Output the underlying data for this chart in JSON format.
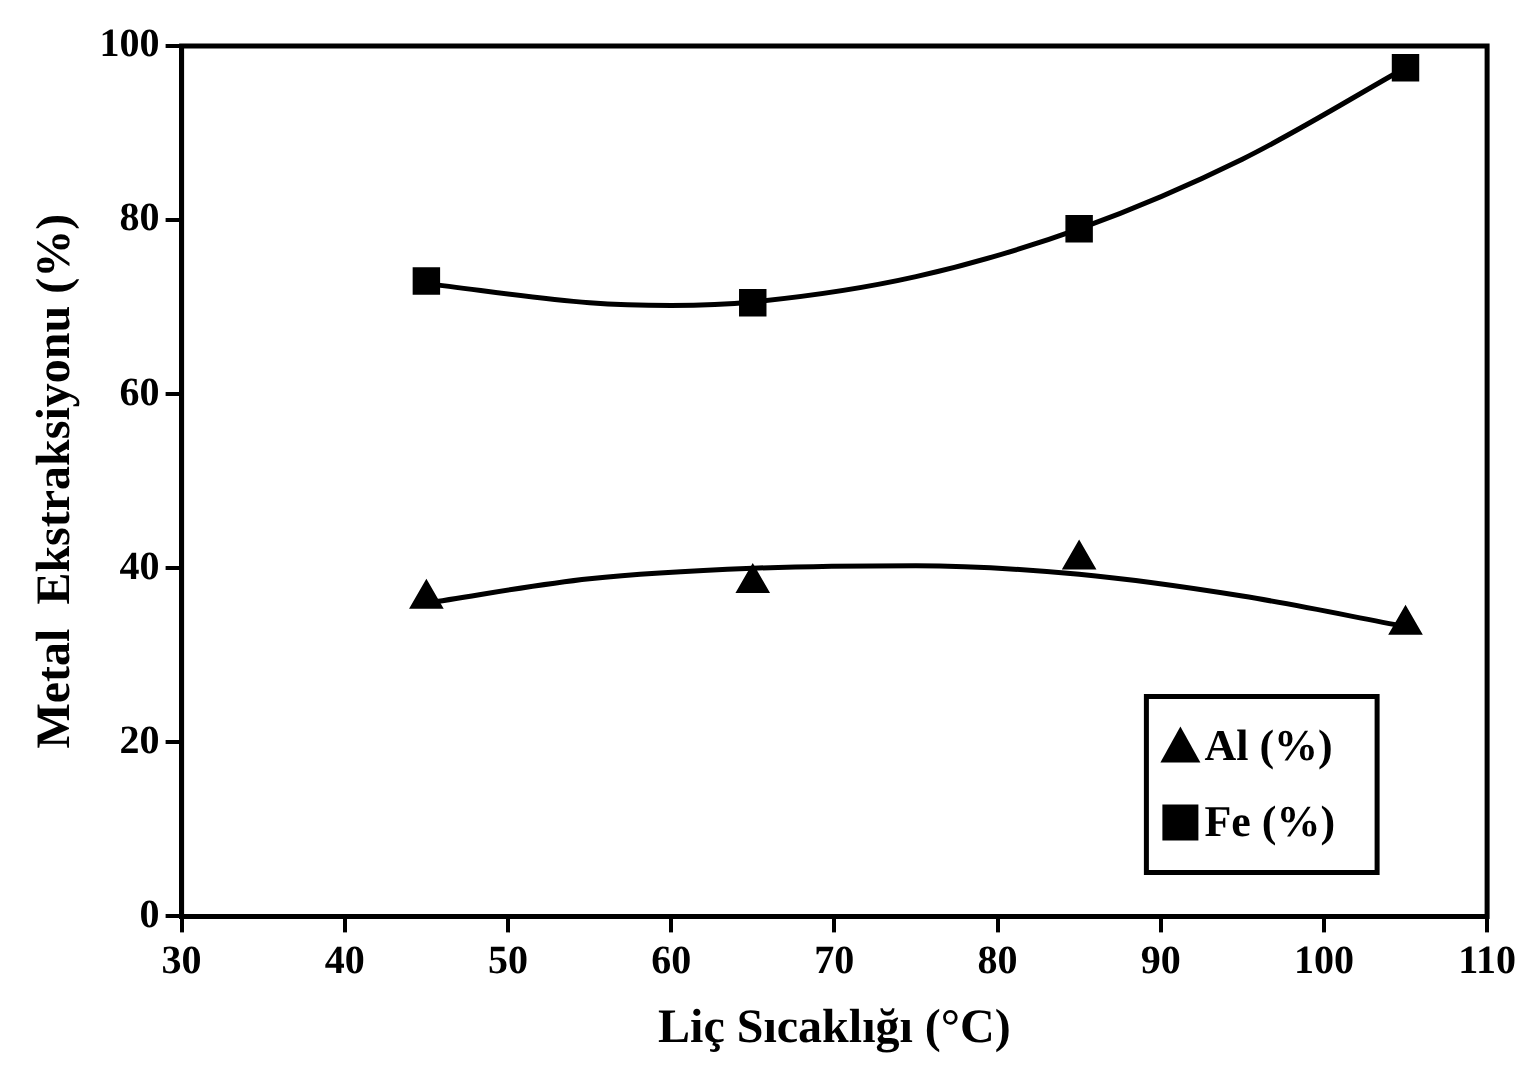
{
  "chart_data": {
    "type": "scatter",
    "xlabel": "Liç Sıcaklığı (°C)",
    "ylabel": "Metal  Ekstraksiyonu (%)",
    "xlim": [
      30,
      110
    ],
    "xticks": [
      30,
      40,
      50,
      60,
      70,
      80,
      90,
      100,
      110
    ],
    "ylim": [
      0,
      100
    ],
    "yticks": [
      0,
      20,
      40,
      60,
      80,
      100
    ],
    "grid": false,
    "legend": "bottom right",
    "series": [
      {
        "name": "Al (%)",
        "color": "#000000",
        "marker": "triangle",
        "x": [
          45,
          65,
          85,
          105
        ],
        "values": [
          36.5,
          38.3,
          41,
          33.5
        ]
      },
      {
        "name": "Fe (%)",
        "color": "#000000",
        "marker": "square",
        "x": [
          45,
          65,
          85,
          105
        ],
        "values": [
          73,
          70.5,
          79,
          97.5
        ]
      },
      {
        "type": "line",
        "color": "#000000",
        "marker": "none",
        "x": [
          45,
          55,
          65,
          75,
          85,
          95,
          105
        ],
        "values": [
          36,
          38.8,
          40,
          40.3,
          39.3,
          36.8,
          33.3
        ]
      },
      {
        "type": "line",
        "color": "#000000",
        "marker": "none",
        "x": [
          45,
          55,
          60,
          65,
          75,
          85,
          95,
          105
        ],
        "values": [
          72.7,
          70.5,
          70.2,
          70.6,
          73.5,
          79,
          87,
          97.5
        ]
      }
    ]
  }
}
